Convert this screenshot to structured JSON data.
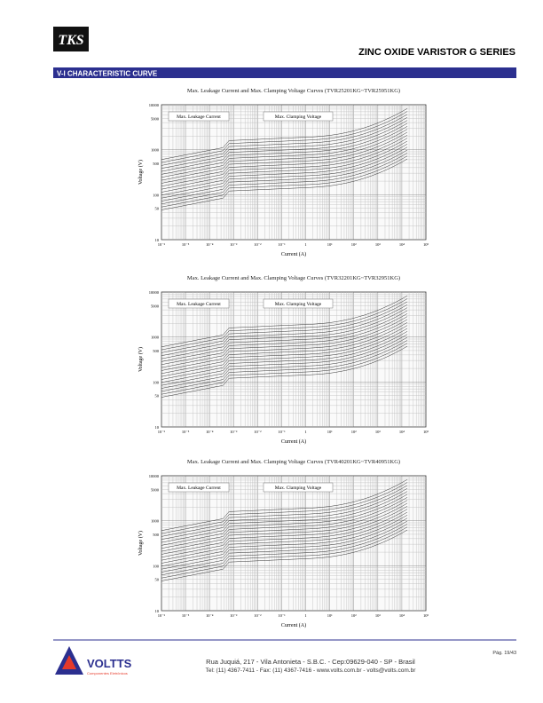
{
  "header": {
    "logo": "TKS",
    "title": "ZINC OXIDE VARISTOR G SERIES"
  },
  "section": "V-I CHARACTERISTIC CURVE",
  "charts": [
    {
      "title": "Max. Leakage Current and Max. Clamping Voltage Curves (TVR25201KG~TVR25951KG)",
      "leakage_label": "Max. Leakage Current",
      "clamping_label": "Max. Clamping Voltage",
      "y_axis": "Voltage (V)",
      "x_axis": "Current (A)",
      "yticks": [
        "10000",
        "5000",
        "1000",
        "500",
        "100",
        "50",
        "10"
      ],
      "xticks": [
        "10⁻⁶",
        "10⁻⁵",
        "10⁻⁴",
        "10⁻³",
        "10⁻²",
        "10⁻¹",
        "1",
        "10¹",
        "10²",
        "10³",
        "10⁴",
        "10⁵"
      ]
    },
    {
      "title": "Max. Leakage Current and Max. Clamping Voltage Curves (TVR32201KG~TVR32951KG)",
      "leakage_label": "Max. Leakage Current",
      "clamping_label": "Max. Clamping Voltage",
      "y_axis": "Voltage (V)",
      "x_axis": "Current (A)",
      "yticks": [
        "10000",
        "5000",
        "1000",
        "500",
        "100",
        "50",
        "10"
      ],
      "xticks": [
        "10⁻⁶",
        "10⁻⁵",
        "10⁻⁴",
        "10⁻³",
        "10⁻²",
        "10⁻¹",
        "1",
        "10¹",
        "10²",
        "10³",
        "10⁴",
        "10⁵"
      ]
    },
    {
      "title": "Max. Leakage Current and Max. Clamping Voltage Curves (TVR40201KG~TVR40951KG)",
      "leakage_label": "Max. Leakage Current",
      "clamping_label": "Max. Clamping Voltage",
      "y_axis": "Voltage (V)",
      "x_axis": "Current (A)",
      "yticks": [
        "10000",
        "5000",
        "1000",
        "500",
        "100",
        "50",
        "10"
      ],
      "xticks": [
        "10⁻⁶",
        "10⁻⁵",
        "10⁻⁴",
        "10⁻³",
        "10⁻²",
        "10⁻¹",
        "1",
        "10¹",
        "10²",
        "10³",
        "10⁴",
        "10⁵"
      ]
    }
  ],
  "footer": {
    "brand": "VOLTTS",
    "tagline": "Componentes Eletrônicos",
    "address": "Rua Juquiá, 217  -  Vila Antonieta  -  S.B.C.  -  Cep:09629-040  -  SP - Brasil",
    "contact": "Tel: (11) 4367-7411  -  Fax: (11) 4367-7416  -  www.volts.com.br  -  volts@volts.com.br",
    "page": "Pág. 19/43"
  }
}
